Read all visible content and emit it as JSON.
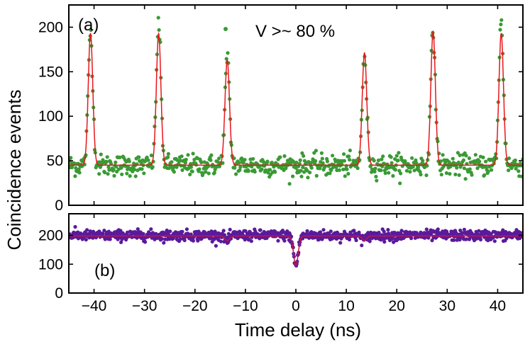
{
  "chart_data": [
    {
      "panel": "(a)",
      "type": "scatter",
      "ylabel": "Coincidence events",
      "xlim": [
        -45,
        45
      ],
      "ylim": [
        0,
        225
      ],
      "xticks": [
        -40,
        -30,
        -20,
        -10,
        0,
        10,
        20,
        30,
        40
      ],
      "yticks": [
        0,
        50,
        100,
        150,
        200
      ],
      "legend": {
        "text": "V >~ 80 %",
        "placement": "top-center"
      },
      "series": [
        {
          "kind": "points",
          "color": "#3a9a35",
          "baseline": 45,
          "peaks": [
            {
              "x": -40.7,
              "y": 195
            },
            {
              "x": -27.2,
              "y": 205
            },
            {
              "x": -13.6,
              "y": 165
            },
            {
              "x": 13.6,
              "y": 162
            },
            {
              "x": 27.2,
              "y": 195
            },
            {
              "x": 40.7,
              "y": 205
            }
          ]
        },
        {
          "kind": "fit",
          "color": "#e8171c",
          "baseline": 45,
          "peaks": [
            {
              "x": -40.7,
              "y": 193
            },
            {
              "x": -27.2,
              "y": 193
            },
            {
              "x": -13.6,
              "y": 163
            },
            {
              "x": 13.6,
              "y": 171
            },
            {
              "x": 27.2,
              "y": 195
            },
            {
              "x": 40.7,
              "y": 193
            }
          ]
        }
      ]
    },
    {
      "panel": "(b)",
      "type": "scatter",
      "xlabel": "Time delay (ns)",
      "xlim": [
        -45,
        45
      ],
      "ylim": [
        0,
        275
      ],
      "xticks": [
        -40,
        -30,
        -20,
        -10,
        0,
        10,
        20,
        30,
        40
      ],
      "yticks": [
        0,
        100,
        200
      ],
      "series": [
        {
          "kind": "points",
          "color": "#5b1a9a",
          "baseline": 200,
          "dips": [
            {
              "x": 0,
              "y": 95
            },
            {
              "x": -13.6,
              "y": 182
            },
            {
              "x": 13.6,
              "y": 182
            }
          ]
        },
        {
          "kind": "fit",
          "color": "#c0174a",
          "baseline": 198,
          "dips": [
            {
              "x": 0,
              "y": 95
            },
            {
              "x": -13.6,
              "y": 182
            },
            {
              "x": 13.6,
              "y": 182
            }
          ]
        }
      ]
    }
  ],
  "labels": {
    "ylabel": "Coincidence events",
    "xlabel": "Time delay (ns)",
    "panel_a": "(a)",
    "panel_b": "(b)",
    "legend": "V >~ 80 %"
  }
}
